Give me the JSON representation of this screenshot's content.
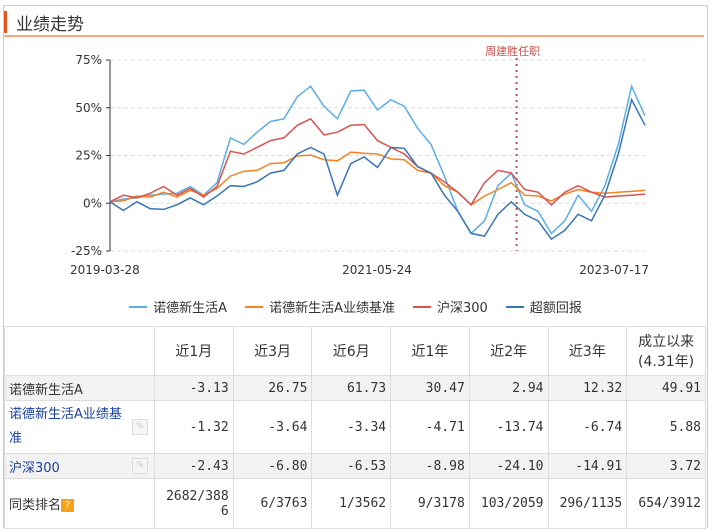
{
  "header": {
    "title": "业绩走势"
  },
  "chart_data": {
    "type": "line",
    "y_ticks": [
      "75%",
      "50%",
      "25%",
      "0%",
      "-25%"
    ],
    "ylim": [
      -25,
      75
    ],
    "x_ticks": [
      "2019-03-28",
      "2021-05-24",
      "2023-07-17"
    ],
    "annotation": "周建胜任职",
    "annotation_position": 0.76,
    "series": [
      {
        "name": "诺德新生活A",
        "color": "#5aaee8",
        "values": [
          0,
          3,
          2,
          5,
          4,
          6,
          8,
          5,
          10,
          35,
          30,
          38,
          42,
          45,
          55,
          62,
          50,
          45,
          58,
          60,
          48,
          55,
          50,
          40,
          30,
          15,
          -5,
          -15,
          -10,
          10,
          15,
          0,
          -5,
          -15,
          -10,
          5,
          -5,
          10,
          30,
          62,
          45
        ]
      },
      {
        "name": "诺德新生活A业绩基准",
        "color": "#f58220",
        "values": [
          0,
          2,
          3,
          4,
          5,
          4,
          6,
          5,
          7,
          15,
          16,
          18,
          20,
          22,
          24,
          26,
          22,
          23,
          26,
          27,
          25,
          24,
          22,
          18,
          15,
          10,
          5,
          0,
          3,
          8,
          10,
          5,
          3,
          2,
          4,
          8,
          5,
          6,
          5,
          7,
          6
        ]
      },
      {
        "name": "沪深300",
        "color": "#d9534f",
        "values": [
          0,
          5,
          2,
          6,
          8,
          5,
          7,
          4,
          8,
          28,
          25,
          30,
          32,
          35,
          40,
          45,
          35,
          38,
          40,
          42,
          32,
          30,
          25,
          20,
          15,
          12,
          5,
          0,
          10,
          18,
          15,
          8,
          5,
          0,
          5,
          10,
          5,
          4,
          3,
          5,
          4
        ]
      },
      {
        "name": "超额回报",
        "color": "#3a75b5",
        "values": [
          0,
          -3,
          0,
          -2,
          -4,
          0,
          2,
          0,
          3,
          10,
          8,
          12,
          15,
          18,
          25,
          30,
          25,
          5,
          20,
          25,
          18,
          30,
          28,
          20,
          15,
          5,
          -5,
          -15,
          -18,
          -5,
          0,
          -5,
          -10,
          -18,
          -15,
          -5,
          -10,
          5,
          25,
          55,
          40
        ]
      }
    ]
  },
  "table": {
    "headers": [
      "近1月",
      "近3月",
      "近6月",
      "近1年",
      "近2年",
      "近3年",
      "成立以来",
      "(4.31年)"
    ],
    "rows": [
      {
        "label": "诺德新生活A",
        "values": [
          "-3.13",
          "26.75",
          "61.73",
          "30.47",
          "2.94",
          "12.32",
          "49.91"
        ]
      },
      {
        "label": "诺德新生活A业绩基准",
        "values": [
          "-1.32",
          "-3.64",
          "-3.34",
          "-4.71",
          "-13.74",
          "-6.74",
          "5.88"
        ]
      },
      {
        "label": "沪深300",
        "values": [
          "-2.43",
          "-6.80",
          "-6.53",
          "-8.98",
          "-24.10",
          "-14.91",
          "3.72"
        ]
      },
      {
        "label": "同类排名",
        "values": [
          "2682/3886",
          "6/3763",
          "1/3562",
          "9/3178",
          "103/2059",
          "296/1135",
          "654/3912"
        ]
      }
    ],
    "help_icon": "?",
    "edit_icon": "pencil"
  }
}
